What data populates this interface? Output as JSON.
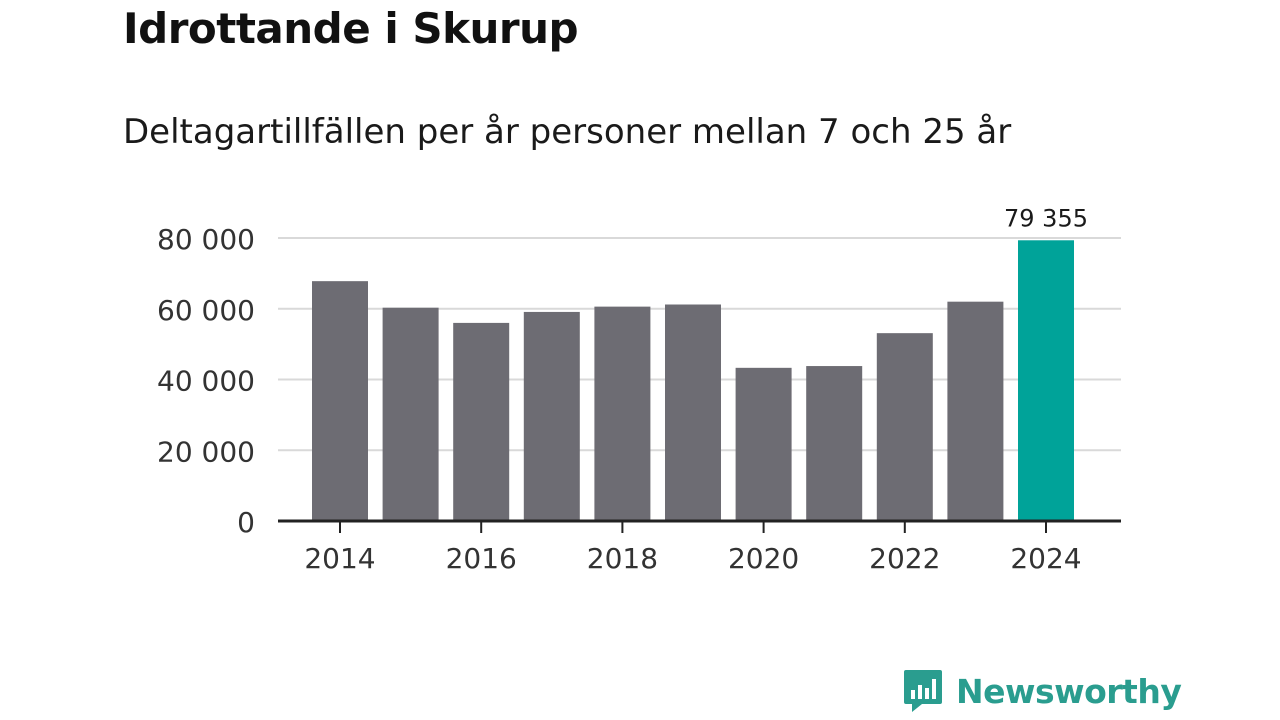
{
  "title": "Idrottande i Skurup",
  "subtitle": "Deltagartillfällen per år personer mellan 7 och 25 år",
  "brand": {
    "name": "Newsworthy",
    "icon": "bar-chart-speech-bubble-icon",
    "color": "#2a9d8f"
  },
  "colors": {
    "bar": "#6d6c73",
    "highlight": "#00a399",
    "grid": "#d9d9d9",
    "axis": "#222222"
  },
  "chart_data": {
    "type": "bar",
    "title": "Idrottande i Skurup",
    "subtitle": "Deltagartillfällen per år personer mellan 7 och 25 år",
    "xlabel": "",
    "ylabel": "",
    "categories": [
      "2014",
      "2015",
      "2016",
      "2017",
      "2018",
      "2019",
      "2020",
      "2021",
      "2022",
      "2023",
      "2024"
    ],
    "values": [
      67800,
      60300,
      56000,
      59100,
      60600,
      61200,
      43300,
      43800,
      53100,
      62000,
      79355
    ],
    "x_tick_labels": [
      "2014",
      "2016",
      "2018",
      "2020",
      "2022",
      "2024"
    ],
    "y_ticks": [
      0,
      20000,
      40000,
      60000,
      80000
    ],
    "y_tick_labels": [
      "0",
      "20 000",
      "40 000",
      "60 000",
      "80 000"
    ],
    "ylim": [
      0,
      80000
    ],
    "grid": true,
    "highlight_index": 10,
    "annotations": [
      {
        "category": "2024",
        "label": "79 355"
      }
    ]
  }
}
